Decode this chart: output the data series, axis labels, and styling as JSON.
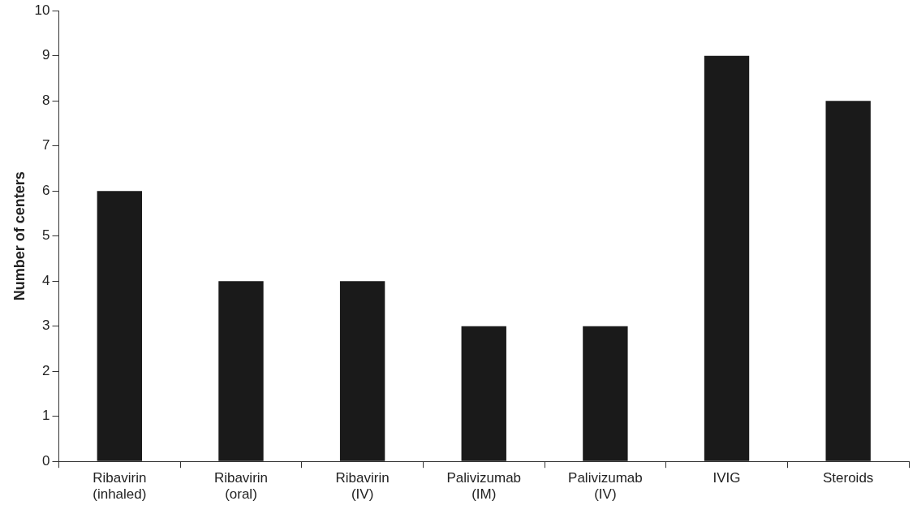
{
  "chart_data": {
    "type": "bar",
    "ylabel": "Number of centers",
    "categories": [
      "Ribavirin (inhaled)",
      "Ribavirin (oral)",
      "Ribavirin (IV)",
      "Palivizumab (IM)",
      "Palivizumab (IV)",
      "IVIG",
      "Steroids"
    ],
    "values": [
      6,
      4,
      4,
      3,
      3,
      9,
      8
    ],
    "color": "#1a1a1a",
    "ylim": [
      0,
      10
    ],
    "yticks": [
      0,
      1,
      2,
      3,
      4,
      5,
      6,
      7,
      8,
      9,
      10
    ],
    "grid": false,
    "legend": false
  }
}
